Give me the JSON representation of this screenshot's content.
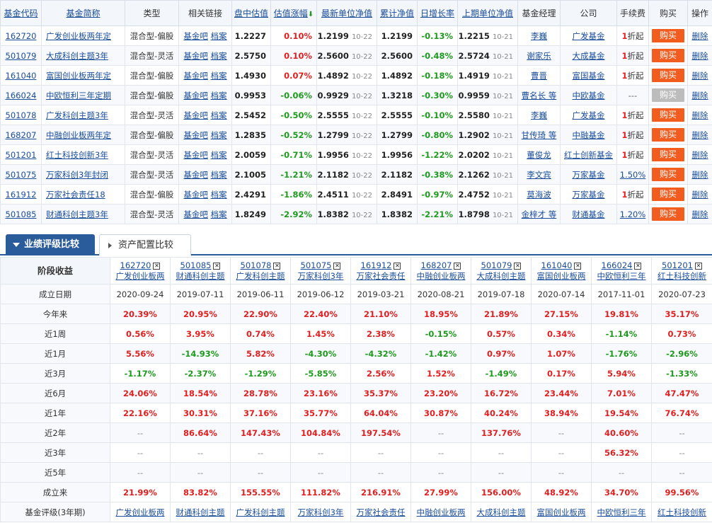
{
  "fund_table": {
    "headers": [
      "基金代码",
      "基金简称",
      "类型",
      "相关链接",
      "盘中估值",
      "估值涨幅",
      "最新单位净值",
      "累计净值",
      "日增长率",
      "上期单位净值",
      "基金经理",
      "公司",
      "手续费",
      "购买",
      "操作"
    ],
    "link_bar": "基金吧",
    "link_archive": "档案",
    "delete_label": "删除",
    "buy_label": "购买",
    "fee_suffix": "折起",
    "rows": [
      {
        "code": "162720",
        "name": "广发创业板两年定",
        "type": "混合型-偏股",
        "est": "1.2227",
        "est_chg": "0.10%",
        "nav": "1.2199",
        "nav_date": "10-22",
        "acc": "1.2199",
        "daily": "-0.13%",
        "prev_nav": "1.2215",
        "prev_date": "10-21",
        "manager": "李巍",
        "company": "广发基金",
        "fee_num": "1",
        "fee_pct": "",
        "buy_enabled": true
      },
      {
        "code": "501079",
        "name": "大成科创主题3年",
        "type": "混合型-灵活",
        "est": "2.5750",
        "est_chg": "0.10%",
        "nav": "2.5600",
        "nav_date": "10-22",
        "acc": "2.5600",
        "daily": "-0.48%",
        "prev_nav": "2.5724",
        "prev_date": "10-21",
        "manager": "谢家乐",
        "company": "大成基金",
        "fee_num": "1",
        "fee_pct": "",
        "buy_enabled": true
      },
      {
        "code": "161040",
        "name": "富国创业板两年定",
        "type": "混合型-偏股",
        "est": "1.4930",
        "est_chg": "0.07%",
        "nav": "1.4892",
        "nav_date": "10-22",
        "acc": "1.4892",
        "daily": "-0.18%",
        "prev_nav": "1.4919",
        "prev_date": "10-21",
        "manager": "曹晋",
        "company": "富国基金",
        "fee_num": "1",
        "fee_pct": "",
        "buy_enabled": true
      },
      {
        "code": "166024",
        "name": "中欧恒利三年定期",
        "type": "混合型-偏股",
        "est": "0.9953",
        "est_chg": "-0.06%",
        "nav": "0.9929",
        "nav_date": "10-22",
        "acc": "1.3218",
        "daily": "-0.30%",
        "prev_nav": "0.9959",
        "prev_date": "10-21",
        "manager": "曹名长 等",
        "company": "中欧基金",
        "fee_num": "",
        "fee_pct": "---",
        "buy_enabled": false
      },
      {
        "code": "501078",
        "name": "广发科创主题3年",
        "type": "混合型-灵活",
        "est": "2.5452",
        "est_chg": "-0.50%",
        "nav": "2.5555",
        "nav_date": "10-22",
        "acc": "2.5555",
        "daily": "-0.10%",
        "prev_nav": "2.5580",
        "prev_date": "10-21",
        "manager": "李巍",
        "company": "广发基金",
        "fee_num": "1",
        "fee_pct": "",
        "buy_enabled": true
      },
      {
        "code": "168207",
        "name": "中融创业板两年定",
        "type": "混合型-偏股",
        "est": "1.2835",
        "est_chg": "-0.52%",
        "nav": "1.2799",
        "nav_date": "10-22",
        "acc": "1.2799",
        "daily": "-0.80%",
        "prev_nav": "1.2902",
        "prev_date": "10-21",
        "manager": "甘传琦 等",
        "company": "中融基金",
        "fee_num": "1",
        "fee_pct": "",
        "buy_enabled": true
      },
      {
        "code": "501201",
        "name": "红土科技创新3年",
        "type": "混合型-灵活",
        "est": "2.0059",
        "est_chg": "-0.71%",
        "nav": "1.9956",
        "nav_date": "10-22",
        "acc": "1.9956",
        "daily": "-1.22%",
        "prev_nav": "2.0202",
        "prev_date": "10-21",
        "manager": "董俊龙",
        "company": "红土创新基金",
        "fee_num": "1",
        "fee_pct": "",
        "buy_enabled": true
      },
      {
        "code": "501075",
        "name": "万家科创3年封闭",
        "type": "混合型-灵活",
        "est": "2.1005",
        "est_chg": "-1.21%",
        "nav": "2.1182",
        "nav_date": "10-22",
        "acc": "2.1182",
        "daily": "-0.38%",
        "prev_nav": "2.1262",
        "prev_date": "10-21",
        "manager": "李文宾",
        "company": "万家基金",
        "fee_num": "",
        "fee_pct": "1.50%",
        "buy_enabled": true
      },
      {
        "code": "161912",
        "name": "万家社会责任18",
        "type": "混合型-偏股",
        "est": "2.4291",
        "est_chg": "-1.86%",
        "nav": "2.4511",
        "nav_date": "10-22",
        "acc": "2.8491",
        "daily": "-0.97%",
        "prev_nav": "2.4752",
        "prev_date": "10-21",
        "manager": "莫海波",
        "company": "万家基金",
        "fee_num": "1",
        "fee_pct": "",
        "buy_enabled": true
      },
      {
        "code": "501085",
        "name": "财通科创主题3年",
        "type": "混合型-灵活",
        "est": "1.8249",
        "est_chg": "-2.92%",
        "nav": "1.8382",
        "nav_date": "10-22",
        "acc": "1.8382",
        "daily": "-2.21%",
        "prev_nav": "1.8798",
        "prev_date": "10-21",
        "manager": "金梓才 等",
        "company": "财通基金",
        "fee_num": "",
        "fee_pct": "1.20%",
        "buy_enabled": true
      }
    ]
  },
  "tabs": [
    {
      "label": "业绩评级比较",
      "active": true
    },
    {
      "label": "资产配置比较",
      "active": false
    }
  ],
  "compare": {
    "stage_header": "阶段收益",
    "close_glyph": "✕",
    "funds": [
      {
        "code": "162720",
        "name": "广发创业板两"
      },
      {
        "code": "501085",
        "name": "财通科创主题"
      },
      {
        "code": "501078",
        "name": "广发科创主题"
      },
      {
        "code": "501075",
        "name": "万家科创3年"
      },
      {
        "code": "161912",
        "name": "万家社会责任"
      },
      {
        "code": "168207",
        "name": "中融创业板两"
      },
      {
        "code": "501079",
        "name": "大成科创主题"
      },
      {
        "code": "161040",
        "name": "富国创业板两"
      },
      {
        "code": "166024",
        "name": "中欧恒利三年"
      },
      {
        "code": "501201",
        "name": "红土科技创新"
      }
    ],
    "rows": [
      {
        "label": "成立日期",
        "plain": true,
        "values": [
          "2020-09-24",
          "2019-07-11",
          "2019-06-11",
          "2019-06-12",
          "2019-03-21",
          "2020-08-21",
          "2019-07-18",
          "2020-07-14",
          "2017-11-01",
          "2020-07-23"
        ]
      },
      {
        "label": "今年来",
        "values": [
          "20.39%",
          "20.95%",
          "22.90%",
          "22.40%",
          "21.10%",
          "18.95%",
          "21.89%",
          "27.15%",
          "19.81%",
          "35.17%"
        ]
      },
      {
        "label": "近1周",
        "values": [
          "0.56%",
          "3.95%",
          "0.74%",
          "1.45%",
          "2.38%",
          "-0.15%",
          "0.57%",
          "0.34%",
          "-1.14%",
          "0.73%"
        ]
      },
      {
        "label": "近1月",
        "values": [
          "5.56%",
          "-14.93%",
          "5.82%",
          "-4.30%",
          "-4.32%",
          "-1.42%",
          "0.97%",
          "1.07%",
          "-1.76%",
          "-2.96%"
        ]
      },
      {
        "label": "近3月",
        "values": [
          "-1.17%",
          "-2.37%",
          "-1.29%",
          "-5.85%",
          "2.56%",
          "1.52%",
          "-1.49%",
          "0.17%",
          "5.94%",
          "-1.33%"
        ]
      },
      {
        "label": "近6月",
        "values": [
          "24.06%",
          "18.54%",
          "28.78%",
          "23.16%",
          "35.37%",
          "23.20%",
          "16.72%",
          "23.44%",
          "7.01%",
          "47.47%"
        ]
      },
      {
        "label": "近1年",
        "values": [
          "22.16%",
          "30.31%",
          "37.16%",
          "35.77%",
          "64.04%",
          "30.87%",
          "40.24%",
          "38.94%",
          "19.54%",
          "76.74%"
        ]
      },
      {
        "label": "近2年",
        "values": [
          "--",
          "86.64%",
          "147.43%",
          "104.84%",
          "197.54%",
          "--",
          "137.76%",
          "--",
          "40.60%",
          "--"
        ]
      },
      {
        "label": "近3年",
        "values": [
          "--",
          "--",
          "--",
          "--",
          "--",
          "--",
          "--",
          "--",
          "56.32%",
          "--"
        ]
      },
      {
        "label": "近5年",
        "values": [
          "--",
          "--",
          "--",
          "--",
          "--",
          "--",
          "--",
          "--",
          "--",
          "--"
        ]
      },
      {
        "label": "成立来",
        "values": [
          "21.99%",
          "83.82%",
          "155.55%",
          "111.82%",
          "216.91%",
          "27.99%",
          "156.00%",
          "48.92%",
          "34.70%",
          "99.56%"
        ]
      }
    ],
    "rating_label": "基金评级(3年期)",
    "rating_values": [
      "广发创业板两",
      "财通科创主题",
      "广发科创主题",
      "万家科创3年",
      "万家社会责任",
      "中融创业板两",
      "大成科创主题",
      "富国创业板两",
      "中欧恒利三年",
      "红土科技创新"
    ]
  },
  "colors": {
    "up": "#e02020",
    "down": "#1e9a1e",
    "link": "#1a4d9a",
    "buy": "#f25c1f",
    "tab_active": "#2a5b9a"
  }
}
